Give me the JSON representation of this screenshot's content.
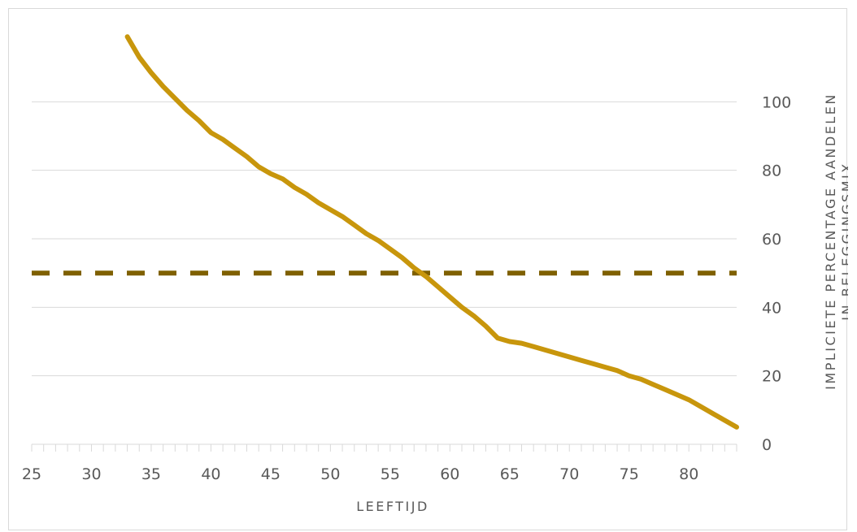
{
  "chart_data": {
    "type": "line",
    "title": "",
    "xlabel": "LEEFTIJD",
    "ylabel": "IMPLICIETE PERCENTAGE AANDELEN IN BELEGGINGSMIX",
    "ylabel_lines": [
      "IMPLICIETE PERCENTAGE AANDELEN",
      "IN BELEGGINGSMIX"
    ],
    "xlim": [
      25,
      84
    ],
    "ylim": [
      0,
      120
    ],
    "x_ticks": [
      25,
      30,
      35,
      40,
      45,
      50,
      55,
      60,
      65,
      70,
      75,
      80
    ],
    "y_ticks": [
      0,
      20,
      40,
      60,
      80,
      100
    ],
    "y_axis_position": "right",
    "grid": "horizontal",
    "legend": "none",
    "colors": {
      "line": "#C8960C",
      "reference": "#7F6000",
      "grid": "#d9d9d9",
      "text": "#595959"
    },
    "series": [
      {
        "style": "solid",
        "x": [
          33,
          34,
          35,
          36,
          37,
          38,
          39,
          40,
          41,
          42,
          43,
          44,
          45,
          46,
          47,
          48,
          49,
          50,
          51,
          52,
          53,
          54,
          55,
          56,
          57,
          58,
          59,
          60,
          61,
          62,
          63,
          64,
          65,
          66,
          67,
          68,
          69,
          70,
          71,
          72,
          73,
          74,
          75,
          76,
          77,
          78,
          79,
          80,
          81,
          82,
          83,
          84
        ],
        "values": [
          119,
          113,
          108.5,
          104.5,
          101,
          97.5,
          94.5,
          91,
          89,
          86.5,
          84,
          81,
          79,
          77.5,
          75,
          73,
          70.5,
          68.5,
          66.5,
          64,
          61.5,
          59.5,
          57,
          54.5,
          51.5,
          49,
          46,
          43,
          40,
          37.5,
          34.5,
          31,
          30,
          29.5,
          28.5,
          27.5,
          26.5,
          25.5,
          24.5,
          23.5,
          22.5,
          21.5,
          20,
          19,
          17.5,
          16,
          14.5,
          13,
          11,
          9,
          7,
          5
        ]
      },
      {
        "style": "dashed",
        "x": [
          25,
          84
        ],
        "values": [
          50,
          50
        ]
      }
    ]
  }
}
